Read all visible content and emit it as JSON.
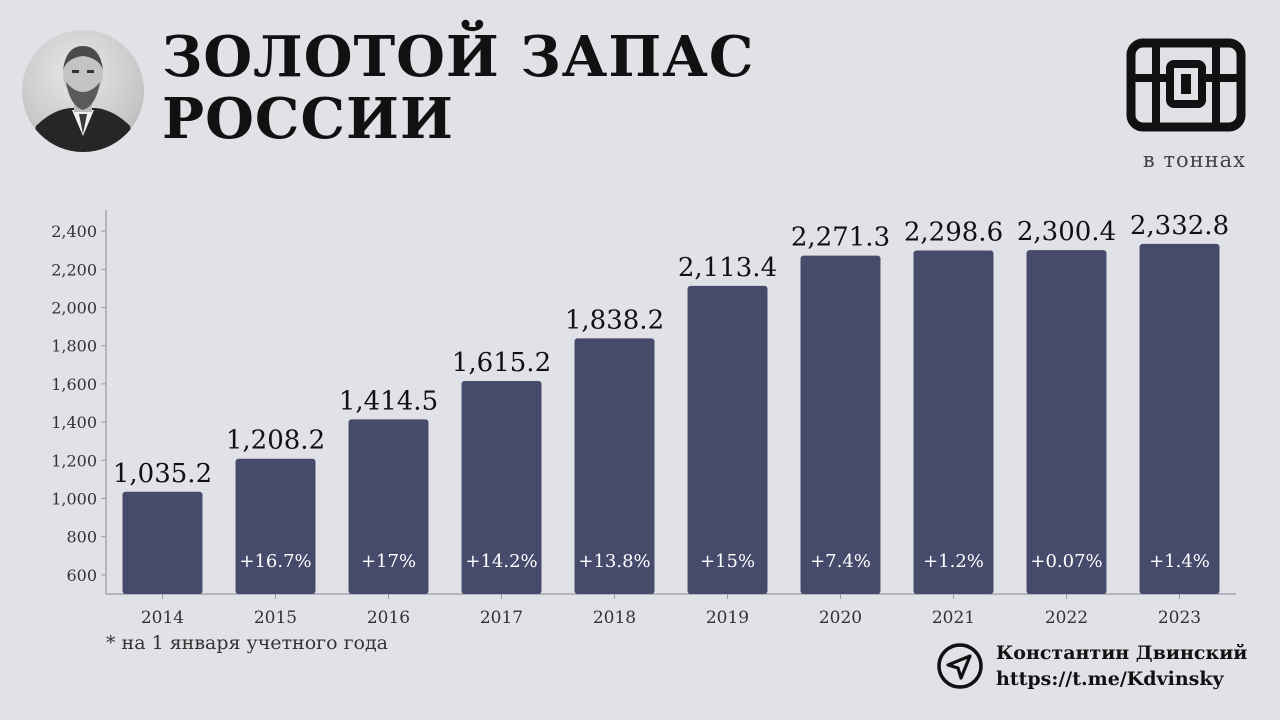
{
  "header": {
    "title_line1": "ЗОЛОТОЙ ЗАПАС",
    "title_line2": "РОССИИ",
    "units": "в тоннах"
  },
  "icons": {
    "portrait": "portrait-photo",
    "chest": "treasure-chest-icon",
    "navigation": "navigation-arrow-icon"
  },
  "colors": {
    "bar": "#464a6b",
    "background": "#e1e2e7",
    "growth_label": "#ffffff",
    "text": "#111111"
  },
  "chart_data": {
    "type": "bar",
    "categories": [
      "2014",
      "2015",
      "2016",
      "2017",
      "2018",
      "2019",
      "2020",
      "2021",
      "2022",
      "2023"
    ],
    "values": [
      1035.2,
      1208.2,
      1414.5,
      1615.2,
      1838.2,
      2113.4,
      2271.3,
      2298.6,
      2300.4,
      2332.8
    ],
    "value_labels": [
      "1,035.2",
      "1,208.2",
      "1,414.5",
      "1,615.2",
      "1,838.2",
      "2,113.4",
      "2,271.3",
      "2,298.6",
      "2,300.4",
      "2,332.8"
    ],
    "growth_labels": [
      "",
      "+16.7%",
      "+17%",
      "+14.2%",
      "+13.8%",
      "+15%",
      "+7.4%",
      "+1.2%",
      "+0.07%",
      "+1.4%"
    ],
    "y_ticks": [
      600,
      800,
      1000,
      1200,
      1400,
      1600,
      1800,
      2000,
      2200,
      2400
    ],
    "y_tick_labels": [
      "600",
      "800",
      "1,000",
      "1,200",
      "1,400",
      "1,600",
      "1,800",
      "2,000",
      "2,200",
      "2,400"
    ],
    "ylim": [
      500,
      2500
    ],
    "grid": false,
    "legend": "none"
  },
  "footnote": "* на 1 января учетного года",
  "author": {
    "name": "Константин Двинский",
    "link": "https://t.me/Kdvinsky"
  }
}
